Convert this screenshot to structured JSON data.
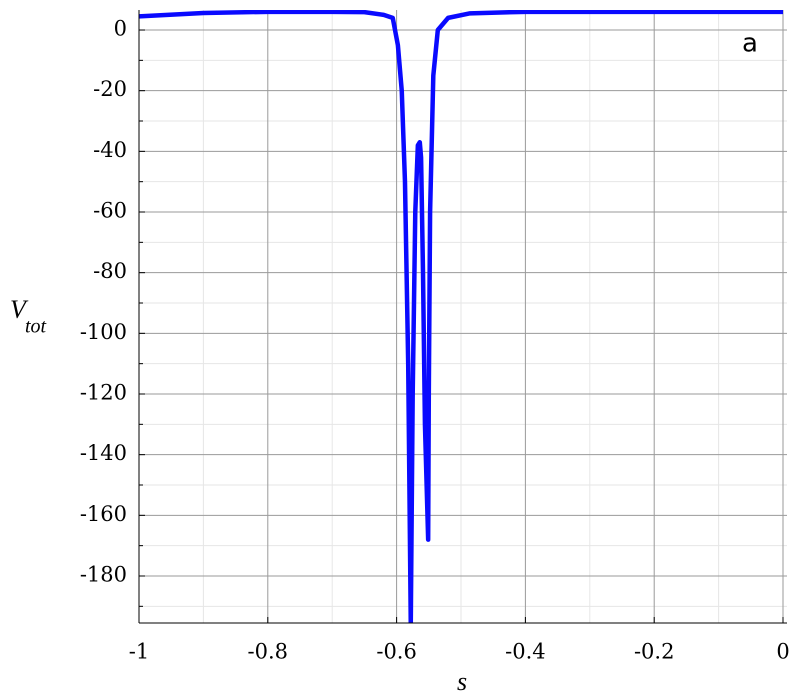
{
  "chart_data": {
    "type": "line",
    "xlabel": "s",
    "ylabel": "V",
    "ylabel_sub": "tot",
    "annotation": "a",
    "x": [
      -1,
      -0.9,
      -0.8,
      -0.7,
      -0.65,
      -0.62,
      -0.606,
      -0.598,
      -0.592,
      -0.587,
      -0.582,
      -0.578,
      -0.575,
      -0.571,
      -0.567,
      -0.564,
      -0.562,
      -0.559,
      -0.556,
      -0.551,
      -0.55,
      -0.548,
      -0.543,
      -0.536,
      -0.52,
      -0.486,
      -0.4,
      -0.2,
      0
    ],
    "series": [
      {
        "color": "#0a0aff",
        "values": [
          4.5,
          5.6,
          6,
          6,
          5.9,
          5,
          4,
          -5,
          -20,
          -50,
          -110,
          -196,
          -120,
          -60,
          -38,
          -37,
          -42,
          -80,
          -130,
          -168,
          -120,
          -60,
          -15,
          0,
          4,
          5.5,
          6,
          6,
          6
        ]
      }
    ],
    "xlim": [
      -1,
      0
    ],
    "ylim": [
      -195.5,
      6.6
    ],
    "xticks": [
      -1,
      -0.8,
      -0.6,
      -0.4,
      -0.2,
      0
    ],
    "yticks": [
      0,
      -20,
      -40,
      -60,
      -80,
      -100,
      -120,
      -140,
      -160,
      -180
    ],
    "xminor": [
      -0.9,
      -0.7,
      -0.5,
      -0.3,
      -0.1
    ],
    "yminor": [
      -10,
      -30,
      -50,
      -70,
      -90,
      -110,
      -130,
      -150,
      -170,
      -190
    ],
    "grid": true
  }
}
